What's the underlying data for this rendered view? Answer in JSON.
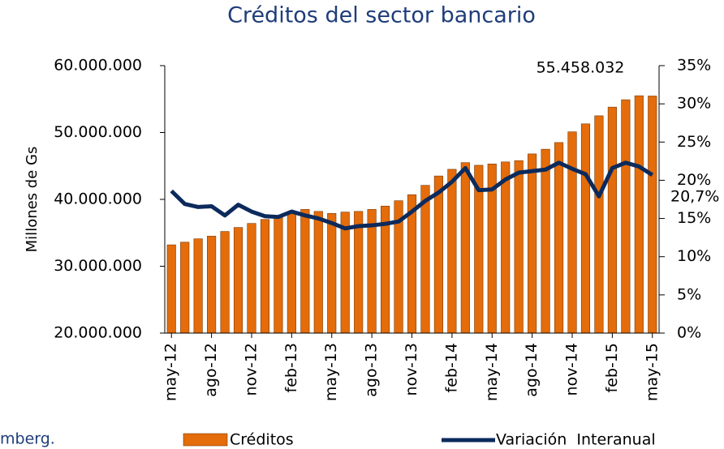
{
  "chart_data": {
    "type": "bar_line",
    "title": "Créditos del sector bancario",
    "y_label": "Millones de Gs",
    "source": "mberg.",
    "categories": [
      "may-12",
      null,
      null,
      "ago-12",
      null,
      null,
      "nov-12",
      null,
      null,
      "feb-13",
      null,
      null,
      "may-13",
      null,
      null,
      "ago-13",
      null,
      null,
      "nov-13",
      null,
      null,
      "feb-14",
      null,
      null,
      "may-14",
      null,
      null,
      "ago-14",
      null,
      null,
      "nov-14",
      null,
      null,
      "feb-15",
      null,
      null,
      "may-15"
    ],
    "series": [
      {
        "name": "Créditos",
        "color": "#e46c0a",
        "values": [
          33200000,
          33600000,
          34100000,
          34500000,
          35200000,
          35800000,
          36400000,
          37000000,
          37600000,
          38100000,
          38500000,
          38200000,
          37900000,
          38100000,
          38200000,
          38500000,
          39000000,
          39800000,
          40700000,
          42100000,
          43500000,
          44500000,
          45500000,
          45100000,
          45300000,
          45600000,
          45800000,
          46800000,
          47500000,
          48500000,
          50100000,
          51300000,
          52500000,
          53800000,
          54900000,
          55500000,
          55458032
        ]
      },
      {
        "name": "Variación  Interanual",
        "color": "#0c2a5c",
        "axis": "y2",
        "values": [
          18.6,
          16.9,
          16.5,
          16.6,
          15.4,
          16.8,
          15.9,
          15.3,
          15.2,
          15.9,
          15.4,
          15.0,
          14.4,
          13.7,
          14.0,
          14.1,
          14.3,
          14.6,
          15.9,
          17.3,
          18.4,
          19.8,
          21.6,
          18.7,
          18.8,
          20.1,
          21.0,
          21.2,
          21.4,
          22.3,
          21.5,
          20.8,
          17.9,
          21.6,
          22.3,
          21.8,
          20.7
        ]
      }
    ],
    "annotations": [
      "55.458.032",
      "20,7%"
    ],
    "ylim": [
      20000000,
      60000000
    ],
    "yticks": [
      {
        "value": 20000000,
        "label": "20.000.000"
      },
      {
        "value": 30000000,
        "label": "30.000.000"
      },
      {
        "value": 40000000,
        "label": "40.000.000"
      },
      {
        "value": 50000000,
        "label": "50.000.000"
      },
      {
        "value": 60000000,
        "label": "60.000.000"
      }
    ],
    "y2lim": [
      0,
      35
    ],
    "y2ticks": [
      {
        "value": 0,
        "label": "0%"
      },
      {
        "value": 5,
        "label": "5%"
      },
      {
        "value": 10,
        "label": "10%"
      },
      {
        "value": 15,
        "label": "15%"
      },
      {
        "value": 20,
        "label": "20%"
      },
      {
        "value": 25,
        "label": "25%"
      },
      {
        "value": 30,
        "label": "30%"
      },
      {
        "value": 35,
        "label": "35%"
      }
    ]
  }
}
